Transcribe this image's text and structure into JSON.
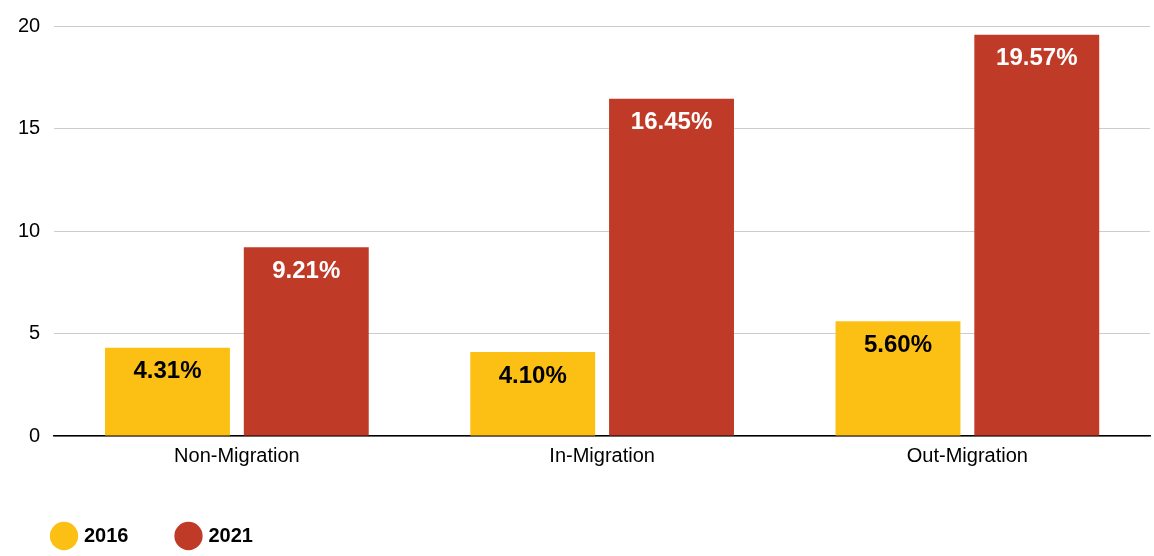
{
  "chart_data": {
    "type": "bar",
    "categories": [
      "Non-Migration",
      "In-Migration",
      "Out-Migration"
    ],
    "series": [
      {
        "name": "2016",
        "color": "#fcc015",
        "values": [
          4.31,
          4.1,
          5.6
        ],
        "value_labels": [
          "4.31%",
          "4.10%",
          "5.60%"
        ]
      },
      {
        "name": "2021",
        "color": "#bf3b28",
        "values": [
          9.21,
          16.45,
          19.57
        ],
        "value_labels": [
          "9.21%",
          "16.45%",
          "19.57%"
        ]
      }
    ],
    "ylim": [
      0,
      20
    ],
    "yticks": [
      0,
      5,
      10,
      15,
      20
    ],
    "grid": "y",
    "legend": "bottom left"
  }
}
